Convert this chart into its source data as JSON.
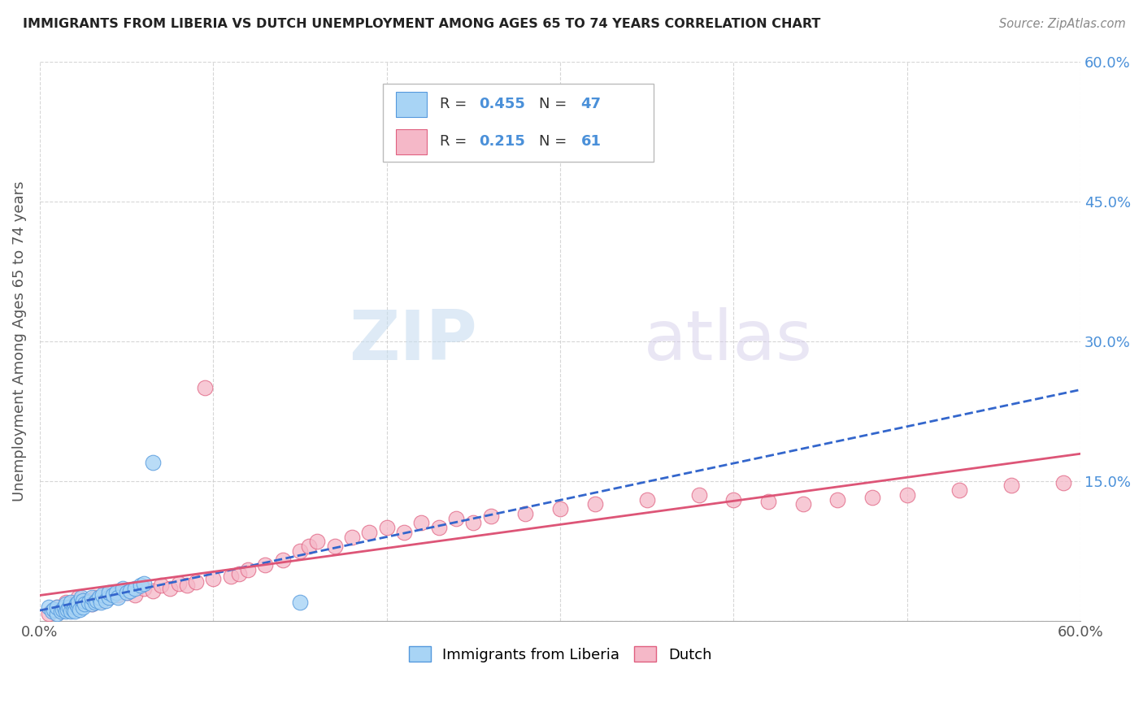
{
  "title": "IMMIGRANTS FROM LIBERIA VS DUTCH UNEMPLOYMENT AMONG AGES 65 TO 74 YEARS CORRELATION CHART",
  "source": "Source: ZipAtlas.com",
  "ylabel": "Unemployment Among Ages 65 to 74 years",
  "xlim": [
    0.0,
    0.6
  ],
  "ylim": [
    0.0,
    0.6
  ],
  "ytick_labels_right": [
    "15.0%",
    "30.0%",
    "45.0%",
    "60.0%"
  ],
  "yticks_right": [
    0.15,
    0.3,
    0.45,
    0.6
  ],
  "liberia_R": 0.455,
  "liberia_N": 47,
  "dutch_R": 0.215,
  "dutch_N": 61,
  "liberia_color": "#a8d4f5",
  "dutch_color": "#f5b8c8",
  "liberia_edge_color": "#5599dd",
  "dutch_edge_color": "#e06080",
  "liberia_line_color": "#3366cc",
  "dutch_line_color": "#dd5577",
  "background_color": "#ffffff",
  "grid_color": "#cccccc",
  "watermark_zip": "ZIP",
  "watermark_atlas": "atlas",
  "liberia_x": [
    0.005,
    0.007,
    0.008,
    0.01,
    0.01,
    0.012,
    0.013,
    0.014,
    0.015,
    0.015,
    0.016,
    0.017,
    0.018,
    0.018,
    0.019,
    0.02,
    0.02,
    0.021,
    0.022,
    0.022,
    0.023,
    0.024,
    0.025,
    0.025,
    0.026,
    0.028,
    0.03,
    0.03,
    0.032,
    0.033,
    0.034,
    0.035,
    0.036,
    0.038,
    0.04,
    0.04,
    0.042,
    0.044,
    0.045,
    0.048,
    0.05,
    0.052,
    0.055,
    0.058,
    0.06,
    0.065,
    0.15
  ],
  "liberia_y": [
    0.015,
    0.01,
    0.012,
    0.008,
    0.015,
    0.01,
    0.012,
    0.015,
    0.01,
    0.018,
    0.012,
    0.015,
    0.01,
    0.02,
    0.012,
    0.015,
    0.01,
    0.018,
    0.015,
    0.02,
    0.012,
    0.025,
    0.015,
    0.022,
    0.018,
    0.02,
    0.018,
    0.025,
    0.02,
    0.022,
    0.025,
    0.02,
    0.028,
    0.022,
    0.025,
    0.03,
    0.028,
    0.03,
    0.025,
    0.035,
    0.03,
    0.032,
    0.035,
    0.038,
    0.04,
    0.17,
    0.02
  ],
  "dutch_x": [
    0.005,
    0.008,
    0.01,
    0.012,
    0.015,
    0.018,
    0.02,
    0.022,
    0.025,
    0.028,
    0.03,
    0.032,
    0.035,
    0.038,
    0.04,
    0.042,
    0.045,
    0.048,
    0.05,
    0.055,
    0.06,
    0.065,
    0.07,
    0.075,
    0.08,
    0.085,
    0.09,
    0.095,
    0.1,
    0.11,
    0.115,
    0.12,
    0.13,
    0.14,
    0.15,
    0.155,
    0.16,
    0.17,
    0.18,
    0.19,
    0.2,
    0.21,
    0.22,
    0.23,
    0.24,
    0.25,
    0.26,
    0.28,
    0.3,
    0.32,
    0.35,
    0.38,
    0.4,
    0.42,
    0.44,
    0.46,
    0.48,
    0.5,
    0.53,
    0.56,
    0.59
  ],
  "dutch_y": [
    0.008,
    0.012,
    0.015,
    0.01,
    0.02,
    0.015,
    0.018,
    0.025,
    0.02,
    0.022,
    0.018,
    0.025,
    0.022,
    0.028,
    0.025,
    0.03,
    0.028,
    0.032,
    0.03,
    0.028,
    0.035,
    0.032,
    0.038,
    0.035,
    0.04,
    0.038,
    0.042,
    0.25,
    0.045,
    0.048,
    0.05,
    0.055,
    0.06,
    0.065,
    0.075,
    0.08,
    0.085,
    0.08,
    0.09,
    0.095,
    0.1,
    0.095,
    0.105,
    0.1,
    0.11,
    0.105,
    0.112,
    0.115,
    0.12,
    0.125,
    0.13,
    0.135,
    0.13,
    0.128,
    0.125,
    0.13,
    0.132,
    0.135,
    0.14,
    0.145,
    0.148
  ]
}
